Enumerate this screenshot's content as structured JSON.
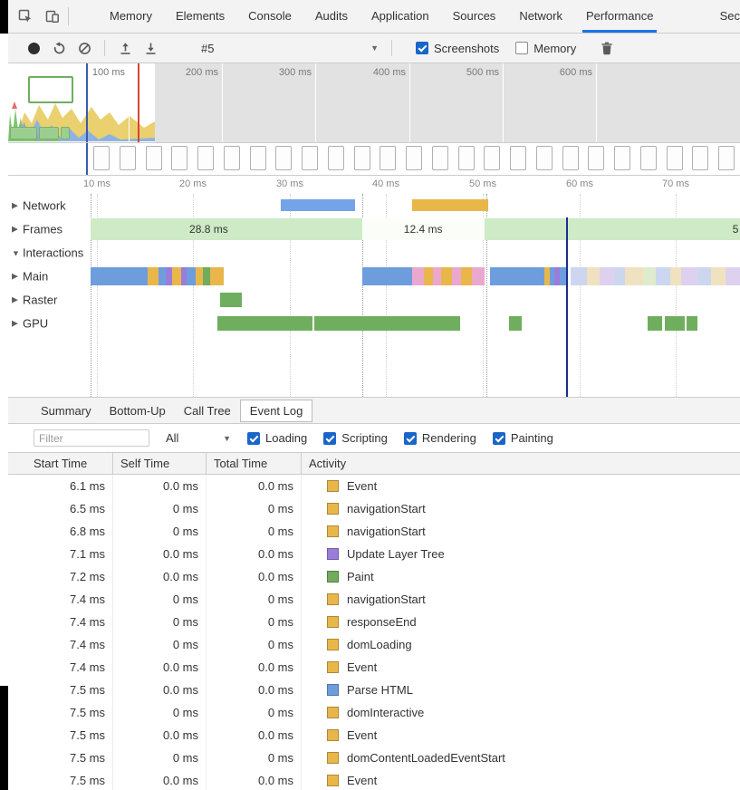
{
  "devtools": {
    "tabs": [
      {
        "label": "Memory"
      },
      {
        "label": "Elements"
      },
      {
        "label": "Console"
      },
      {
        "label": "Audits"
      },
      {
        "label": "Application"
      },
      {
        "label": "Sources"
      },
      {
        "label": "Network"
      },
      {
        "label": "Performance",
        "active": true
      },
      {
        "label": "Sec",
        "clipped": true
      }
    ]
  },
  "toolbar": {
    "history_value": "#5",
    "checkboxes": [
      {
        "label": "Screenshots",
        "checked": true
      },
      {
        "label": "Memory",
        "checked": false
      }
    ]
  },
  "overview": {
    "time_labels": [
      "100 ms",
      "200 ms",
      "300 ms",
      "400 ms",
      "500 ms",
      "600 ms"
    ]
  },
  "ruler": {
    "labels": [
      "10 ms",
      "20 ms",
      "30 ms",
      "40 ms",
      "50 ms",
      "60 ms",
      "70 ms"
    ]
  },
  "tracks": [
    {
      "name": "Network",
      "arrow": "▶",
      "bars": [
        {
          "l": 37.25,
          "w": 10.15,
          "c": "#74a3e8"
        },
        {
          "l": 55.2,
          "w": 10.4,
          "c": "#e9b64a"
        }
      ]
    },
    {
      "name": "Frames",
      "arrow": "▶",
      "bars": [
        {
          "l": 11.26,
          "w": 37.13,
          "c": "#cfeac6"
        },
        {
          "l": 48.39,
          "w": 16.71,
          "c": "#fafdf8"
        },
        {
          "l": 65.1,
          "w": 34.9,
          "c": "#cfeac6"
        }
      ],
      "labels": [
        {
          "text": "28.8 ms",
          "l": 27.4
        },
        {
          "text": "12.4 ms",
          "l": 56.7
        },
        {
          "text": "5",
          "l": 99.4
        }
      ]
    },
    {
      "name": "Interactions",
      "arrow": "▼",
      "bars": []
    },
    {
      "name": "Main",
      "arrow": "▶",
      "bars": [
        {
          "l": 11.26,
          "w": 7.8,
          "c": "#6e9ddd"
        },
        {
          "l": 19.06,
          "w": 1.49,
          "c": "#e9b64a"
        },
        {
          "l": 20.54,
          "w": 0.99,
          "c": "#6e9ddd"
        },
        {
          "l": 21.53,
          "w": 0.87,
          "c": "#9a7cdb"
        },
        {
          "l": 22.4,
          "w": 1.24,
          "c": "#e9b64a"
        },
        {
          "l": 23.64,
          "w": 0.74,
          "c": "#9a7cdb"
        },
        {
          "l": 24.38,
          "w": 1.24,
          "c": "#6e9ddd"
        },
        {
          "l": 25.62,
          "w": 0.99,
          "c": "#e9b64a"
        },
        {
          "l": 26.61,
          "w": 0.99,
          "c": "#71ab5c"
        },
        {
          "l": 27.6,
          "w": 1.86,
          "c": "#e9b64a"
        },
        {
          "l": 48.39,
          "w": 6.81,
          "c": "#6e9ddd"
        },
        {
          "l": 55.2,
          "w": 1.61,
          "c": "#eaa8cf"
        },
        {
          "l": 56.81,
          "w": 1.24,
          "c": "#e9b64a"
        },
        {
          "l": 58.04,
          "w": 1.11,
          "c": "#eaa8cf"
        },
        {
          "l": 59.16,
          "w": 1.49,
          "c": "#e9b64a"
        },
        {
          "l": 60.64,
          "w": 1.24,
          "c": "#eaa8cf"
        },
        {
          "l": 61.88,
          "w": 1.49,
          "c": "#e9b64a"
        },
        {
          "l": 63.37,
          "w": 1.73,
          "c": "#eaa8cf"
        },
        {
          "l": 65.84,
          "w": 7.43,
          "c": "#6e9ddd"
        },
        {
          "l": 73.27,
          "w": 0.74,
          "c": "#e9b64a"
        },
        {
          "l": 74.01,
          "w": 0.62,
          "c": "#6e9ddd"
        },
        {
          "l": 74.63,
          "w": 0.74,
          "c": "#9a7cdb"
        },
        {
          "l": 75.37,
          "w": 0.87,
          "c": "#6e9ddd"
        },
        {
          "l": 76.86,
          "w": 2.23,
          "c": "#ccd7ef"
        },
        {
          "l": 79.09,
          "w": 1.73,
          "c": "#f0e2c0"
        },
        {
          "l": 80.82,
          "w": 1.98,
          "c": "#ded1ef"
        },
        {
          "l": 82.8,
          "w": 1.49,
          "c": "#ccd7ef"
        },
        {
          "l": 84.29,
          "w": 2.48,
          "c": "#f0e2c0"
        },
        {
          "l": 86.77,
          "w": 1.73,
          "c": "#dfeccc"
        },
        {
          "l": 88.5,
          "w": 1.98,
          "c": "#ccd7ef"
        },
        {
          "l": 90.48,
          "w": 1.49,
          "c": "#f0e2c0"
        },
        {
          "l": 91.97,
          "w": 2.23,
          "c": "#ded1ef"
        },
        {
          "l": 94.2,
          "w": 1.86,
          "c": "#ccd7ef"
        },
        {
          "l": 96.06,
          "w": 1.98,
          "c": "#f0e2c0"
        },
        {
          "l": 98.04,
          "w": 1.9,
          "c": "#ded1ef"
        }
      ]
    },
    {
      "name": "Raster",
      "arrow": "▶",
      "bars": [
        {
          "l": 28.96,
          "w": 2.97,
          "c": "#6fae5e"
        }
      ]
    },
    {
      "name": "GPU",
      "arrow": "▶",
      "bars": [
        {
          "l": 28.59,
          "w": 12.99,
          "c": "#6fae5e"
        },
        {
          "l": 41.83,
          "w": 19.93,
          "c": "#6fae5e"
        },
        {
          "l": 68.44,
          "w": 1.73,
          "c": "#6fae5e"
        },
        {
          "l": 87.38,
          "w": 1.98,
          "c": "#6fae5e"
        },
        {
          "l": 89.73,
          "w": 2.72,
          "c": "#6fae5e"
        },
        {
          "l": 92.7,
          "w": 1.49,
          "c": "#6fae5e"
        }
      ]
    }
  ],
  "detail_tabs": [
    {
      "label": "Summary"
    },
    {
      "label": "Bottom-Up"
    },
    {
      "label": "Call Tree"
    },
    {
      "label": "Event Log",
      "active": true
    }
  ],
  "filter": {
    "placeholder": "Filter",
    "category_value": "All",
    "checkboxes": [
      {
        "label": "Loading",
        "checked": true
      },
      {
        "label": "Scripting",
        "checked": true
      },
      {
        "label": "Rendering",
        "checked": true
      },
      {
        "label": "Painting",
        "checked": true
      }
    ]
  },
  "table": {
    "columns": [
      "Start Time",
      "Self Time",
      "Total Time",
      "Activity"
    ],
    "rows": [
      {
        "start": "6.1 ms",
        "self": "0.0 ms",
        "total": "0.0 ms",
        "activity": "Event",
        "color": "#e9b64a"
      },
      {
        "start": "6.5 ms",
        "self": "0 ms",
        "total": "0 ms",
        "activity": "navigationStart",
        "color": "#e9b64a"
      },
      {
        "start": "6.8 ms",
        "self": "0 ms",
        "total": "0 ms",
        "activity": "navigationStart",
        "color": "#e9b64a"
      },
      {
        "start": "7.1 ms",
        "self": "0.0 ms",
        "total": "0.0 ms",
        "activity": "Update Layer Tree",
        "color": "#9a7cdb"
      },
      {
        "start": "7.2 ms",
        "self": "0.0 ms",
        "total": "0.0 ms",
        "activity": "Paint",
        "color": "#71ab5c"
      },
      {
        "start": "7.4 ms",
        "self": "0 ms",
        "total": "0 ms",
        "activity": "navigationStart",
        "color": "#e9b64a"
      },
      {
        "start": "7.4 ms",
        "self": "0 ms",
        "total": "0 ms",
        "activity": "responseEnd",
        "color": "#e9b64a"
      },
      {
        "start": "7.4 ms",
        "self": "0 ms",
        "total": "0 ms",
        "activity": "domLoading",
        "color": "#e9b64a"
      },
      {
        "start": "7.4 ms",
        "self": "0.0 ms",
        "total": "0.0 ms",
        "activity": "Event",
        "color": "#e9b64a"
      },
      {
        "start": "7.5 ms",
        "self": "0.0 ms",
        "total": "0.0 ms",
        "activity": "Parse HTML",
        "color": "#6e9ddd"
      },
      {
        "start": "7.5 ms",
        "self": "0 ms",
        "total": "0 ms",
        "activity": "domInteractive",
        "color": "#e9b64a"
      },
      {
        "start": "7.5 ms",
        "self": "0.0 ms",
        "total": "0.0 ms",
        "activity": "Event",
        "color": "#e9b64a"
      },
      {
        "start": "7.5 ms",
        "self": "0 ms",
        "total": "0 ms",
        "activity": "domContentLoadedEventStart",
        "color": "#e9b64a"
      },
      {
        "start": "7.5 ms",
        "self": "0.0 ms",
        "total": "0.0 ms",
        "activity": "Event",
        "color": "#e9b64a"
      }
    ]
  },
  "colors": {
    "accent": "#1a73e8",
    "scripting": "#e9b64a",
    "loading": "#6e9ddd",
    "rendering": "#9a7cdb",
    "painting": "#71ab5c",
    "gpu": "#6fae5e",
    "frames": "#cfeac6",
    "marker_red": "#d94436",
    "marker_navy": "#1a2f8f"
  }
}
